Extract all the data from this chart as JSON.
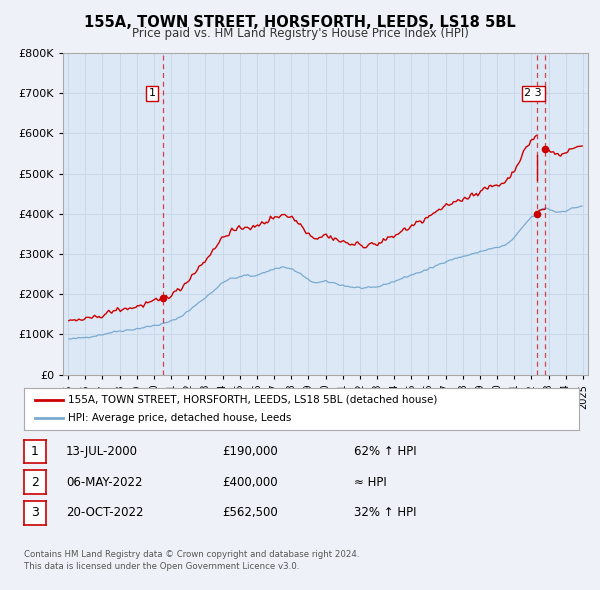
{
  "title": "155A, TOWN STREET, HORSFORTH, LEEDS, LS18 5BL",
  "subtitle": "Price paid vs. HM Land Registry's House Price Index (HPI)",
  "background_color": "#eef2f8",
  "plot_background": "#dce8f5",
  "red_color": "#cc0000",
  "blue_color": "#7aaad0",
  "grid_color": "#c8d8e8",
  "sale_dates_yr": [
    2000.536,
    2022.34,
    2022.8
  ],
  "sale_prices": [
    190000,
    400000,
    562500
  ],
  "sale_labels": [
    "1",
    "2",
    "3"
  ],
  "vline1_x": 2000.536,
  "vline2_x": 2022.34,
  "vline3_x": 2022.8,
  "legend_line1": "155A, TOWN STREET, HORSFORTH, LEEDS, LS18 5BL (detached house)",
  "legend_line2": "HPI: Average price, detached house, Leeds",
  "table_rows": [
    [
      "1",
      "13-JUL-2000",
      "£190,000",
      "62% ↑ HPI"
    ],
    [
      "2",
      "06-MAY-2022",
      "£400,000",
      "≈ HPI"
    ],
    [
      "3",
      "20-OCT-2022",
      "£562,500",
      "32% ↑ HPI"
    ]
  ],
  "footnote1": "Contains HM Land Registry data © Crown copyright and database right 2024.",
  "footnote2": "This data is licensed under the Open Government Licence v3.0.",
  "ylim": [
    0,
    800000
  ],
  "xlim": [
    1994.7,
    2025.3
  ]
}
